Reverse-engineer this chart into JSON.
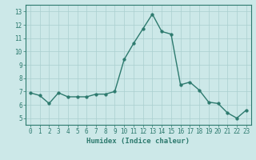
{
  "x": [
    0,
    1,
    2,
    3,
    4,
    5,
    6,
    7,
    8,
    9,
    10,
    11,
    12,
    13,
    14,
    15,
    16,
    17,
    18,
    19,
    20,
    21,
    22,
    23
  ],
  "y": [
    6.9,
    6.7,
    6.1,
    6.9,
    6.6,
    6.6,
    6.6,
    6.8,
    6.8,
    7.0,
    9.4,
    10.6,
    11.7,
    12.8,
    11.5,
    11.3,
    7.5,
    7.7,
    7.1,
    6.2,
    6.1,
    5.4,
    5.0,
    5.6
  ],
  "line_color": "#2d7a6e",
  "marker": "o",
  "markersize": 2.5,
  "linewidth": 1.0,
  "bg_color": "#cce8e8",
  "grid_color": "#aacfcf",
  "xlabel": "Humidex (Indice chaleur)",
  "xlim": [
    -0.5,
    23.5
  ],
  "ylim": [
    4.5,
    13.5
  ],
  "yticks": [
    5,
    6,
    7,
    8,
    9,
    10,
    11,
    12,
    13
  ],
  "xticks": [
    0,
    1,
    2,
    3,
    4,
    5,
    6,
    7,
    8,
    9,
    10,
    11,
    12,
    13,
    14,
    15,
    16,
    17,
    18,
    19,
    20,
    21,
    22,
    23
  ],
  "tick_color": "#2d7a6e",
  "label_color": "#2d7a6e",
  "xlabel_fontsize": 6.5,
  "tick_fontsize": 5.5
}
